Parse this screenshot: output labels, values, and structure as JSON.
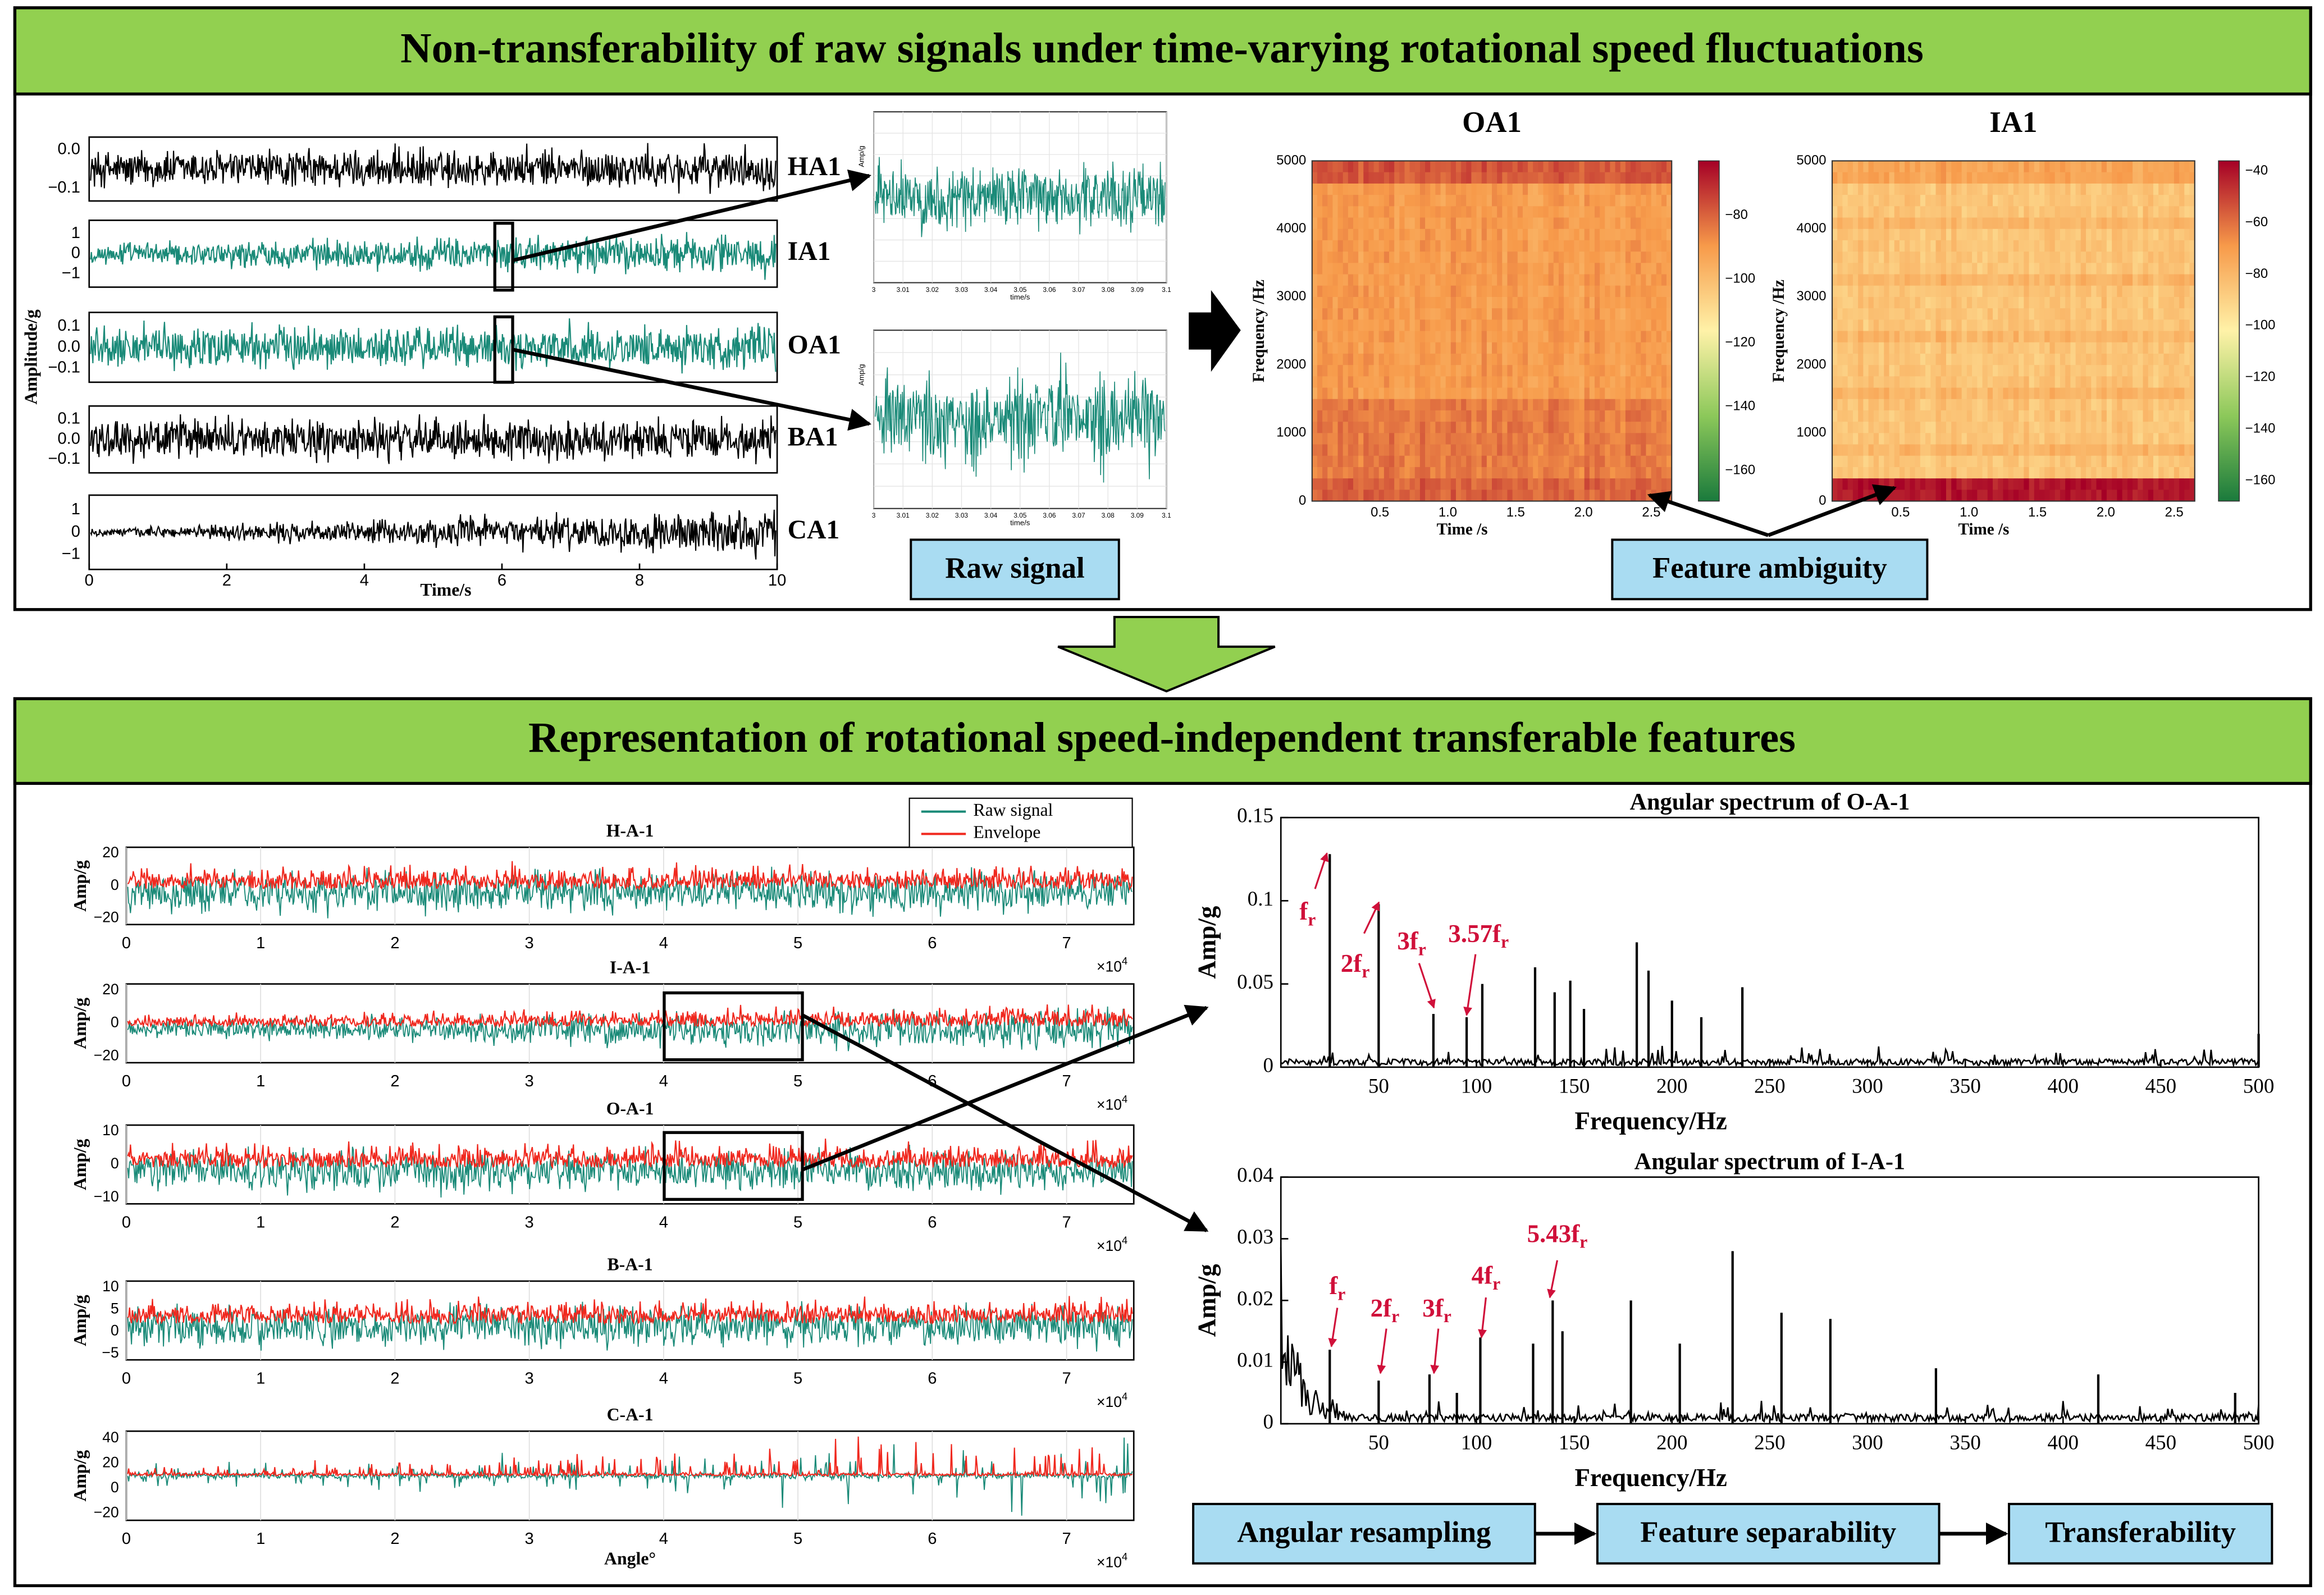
{
  "top": {
    "title": "Non-transferability of raw signals under time-varying rotational speed fluctuations",
    "time_plot": {
      "ylabel": "Amplitude/g",
      "xlabel": "Time/s",
      "xticks": [
        "0",
        "2",
        "4",
        "6",
        "8",
        "10"
      ],
      "channels": [
        {
          "name": "HA1",
          "yticks": [
            "0.0",
            "−0.1"
          ]
        },
        {
          "name": "IA1",
          "yticks": [
            "1",
            "0",
            "−1"
          ]
        },
        {
          "name": "OA1",
          "yticks": [
            "0.1",
            "0.0",
            "−0.1"
          ]
        },
        {
          "name": "BA1",
          "yticks": [
            "0.1",
            "0.0",
            "−0.1"
          ]
        },
        {
          "name": "CA1",
          "yticks": [
            "1",
            "0",
            "−1"
          ]
        }
      ]
    },
    "zoom": {
      "ylabel": "Amp/g",
      "xlabel": "time/s",
      "xticks": [
        "3",
        "3.01",
        "3.02",
        "3.03",
        "3.04",
        "3.05",
        "3.06",
        "3.07",
        "3.08",
        "3.09",
        "3.1"
      ]
    },
    "spectrograms": [
      {
        "title": "OA1",
        "ylabel": "Frequency /Hz",
        "xlabel": "Time /s",
        "yticks": [
          "0",
          "1000",
          "2000",
          "3000",
          "4000",
          "5000"
        ],
        "xticks": [
          "0.5",
          "1.0",
          "1.5",
          "2.0",
          "2.5"
        ],
        "cbar_ticks": [
          "−80",
          "−100",
          "−120",
          "−140",
          "−160"
        ]
      },
      {
        "title": "IA1",
        "ylabel": "Frequency /Hz",
        "xlabel": "Time /s",
        "yticks": [
          "0",
          "1000",
          "2000",
          "3000",
          "4000",
          "5000"
        ],
        "xticks": [
          "0.5",
          "1.0",
          "1.5",
          "2.0",
          "2.5"
        ],
        "cbar_ticks": [
          "−40",
          "−60",
          "−80",
          "−100",
          "−120",
          "−140",
          "−160"
        ]
      }
    ],
    "labels": {
      "raw": "Raw signal",
      "ambiguity": "Feature ambiguity"
    }
  },
  "bottom": {
    "title": "Representation of rotational speed-independent transferable features",
    "angle_plot": {
      "ylabel": "Amp/g",
      "xlabel": "Angle°",
      "xticks": [
        "0",
        "1",
        "2",
        "3",
        "4",
        "5",
        "6",
        "7"
      ],
      "multiplier": {
        "base": "×10",
        "exp": "4"
      },
      "legend": [
        "Raw signal",
        "Envelope"
      ],
      "channels": [
        {
          "title": "H-A-1",
          "yticks": [
            "20",
            "0",
            "−20"
          ]
        },
        {
          "title": "I-A-1",
          "yticks": [
            "20",
            "0",
            "−20"
          ]
        },
        {
          "title": "O-A-1",
          "yticks": [
            "10",
            "0",
            "−10"
          ]
        },
        {
          "title": "B-A-1",
          "yticks": [
            "10",
            "5",
            "0",
            "−5"
          ]
        },
        {
          "title": "C-A-1",
          "yticks": [
            "40",
            "20",
            "0",
            "−20"
          ]
        }
      ]
    },
    "spectra": [
      {
        "title": "Angular spectrum of O-A-1",
        "ylabel": "Amp/g",
        "xlabel": "Frequency/Hz",
        "xlim": [
          0,
          500
        ],
        "ylim": [
          0,
          0.15
        ],
        "xticks": [
          50,
          100,
          150,
          200,
          250,
          300,
          350,
          400,
          450,
          500
        ],
        "yticks": [
          0,
          0.05,
          0.1,
          0.15
        ],
        "peaks_x": [
          25,
          50,
          78,
          95,
          103,
          130,
          140,
          148,
          155,
          182,
          188,
          200,
          215,
          236,
          500
        ],
        "peaks_y": [
          0.128,
          0.098,
          0.032,
          0.03,
          0.05,
          0.06,
          0.045,
          0.052,
          0.035,
          0.075,
          0.058,
          0.04,
          0.03,
          0.048,
          0.02
        ],
        "annotations": [
          {
            "main": "f",
            "sub": "r"
          },
          {
            "main": "2f",
            "sub": "r"
          },
          {
            "main": "3f",
            "sub": "r"
          },
          {
            "main": "3.57f",
            "sub": "r"
          }
        ]
      },
      {
        "title": "Angular spectrum of I-A-1",
        "ylabel": "Amp/g",
        "xlabel": "Frequency/Hz",
        "xlim": [
          0,
          500
        ],
        "ylim": [
          0,
          0.04
        ],
        "xticks": [
          50,
          100,
          150,
          200,
          250,
          300,
          350,
          400,
          450,
          500
        ],
        "yticks": [
          0,
          0.01,
          0.02,
          0.03,
          0.04
        ],
        "peaks_x": [
          25,
          50,
          76,
          90,
          102,
          129,
          139,
          144,
          179,
          204,
          231,
          256,
          281,
          335,
          418,
          488
        ],
        "peaks_y": [
          0.012,
          0.007,
          0.008,
          0.005,
          0.014,
          0.013,
          0.02,
          0.015,
          0.02,
          0.013,
          0.028,
          0.018,
          0.017,
          0.009,
          0.008,
          0.005
        ],
        "annotations": [
          {
            "main": "f",
            "sub": "r"
          },
          {
            "main": "2f",
            "sub": "r"
          },
          {
            "main": "3f",
            "sub": "r"
          },
          {
            "main": "4f",
            "sub": "r"
          },
          {
            "main": "5.43f",
            "sub": "r"
          }
        ]
      }
    ],
    "flow": [
      "Angular resampling",
      "Feature separability",
      "Transferability"
    ]
  }
}
